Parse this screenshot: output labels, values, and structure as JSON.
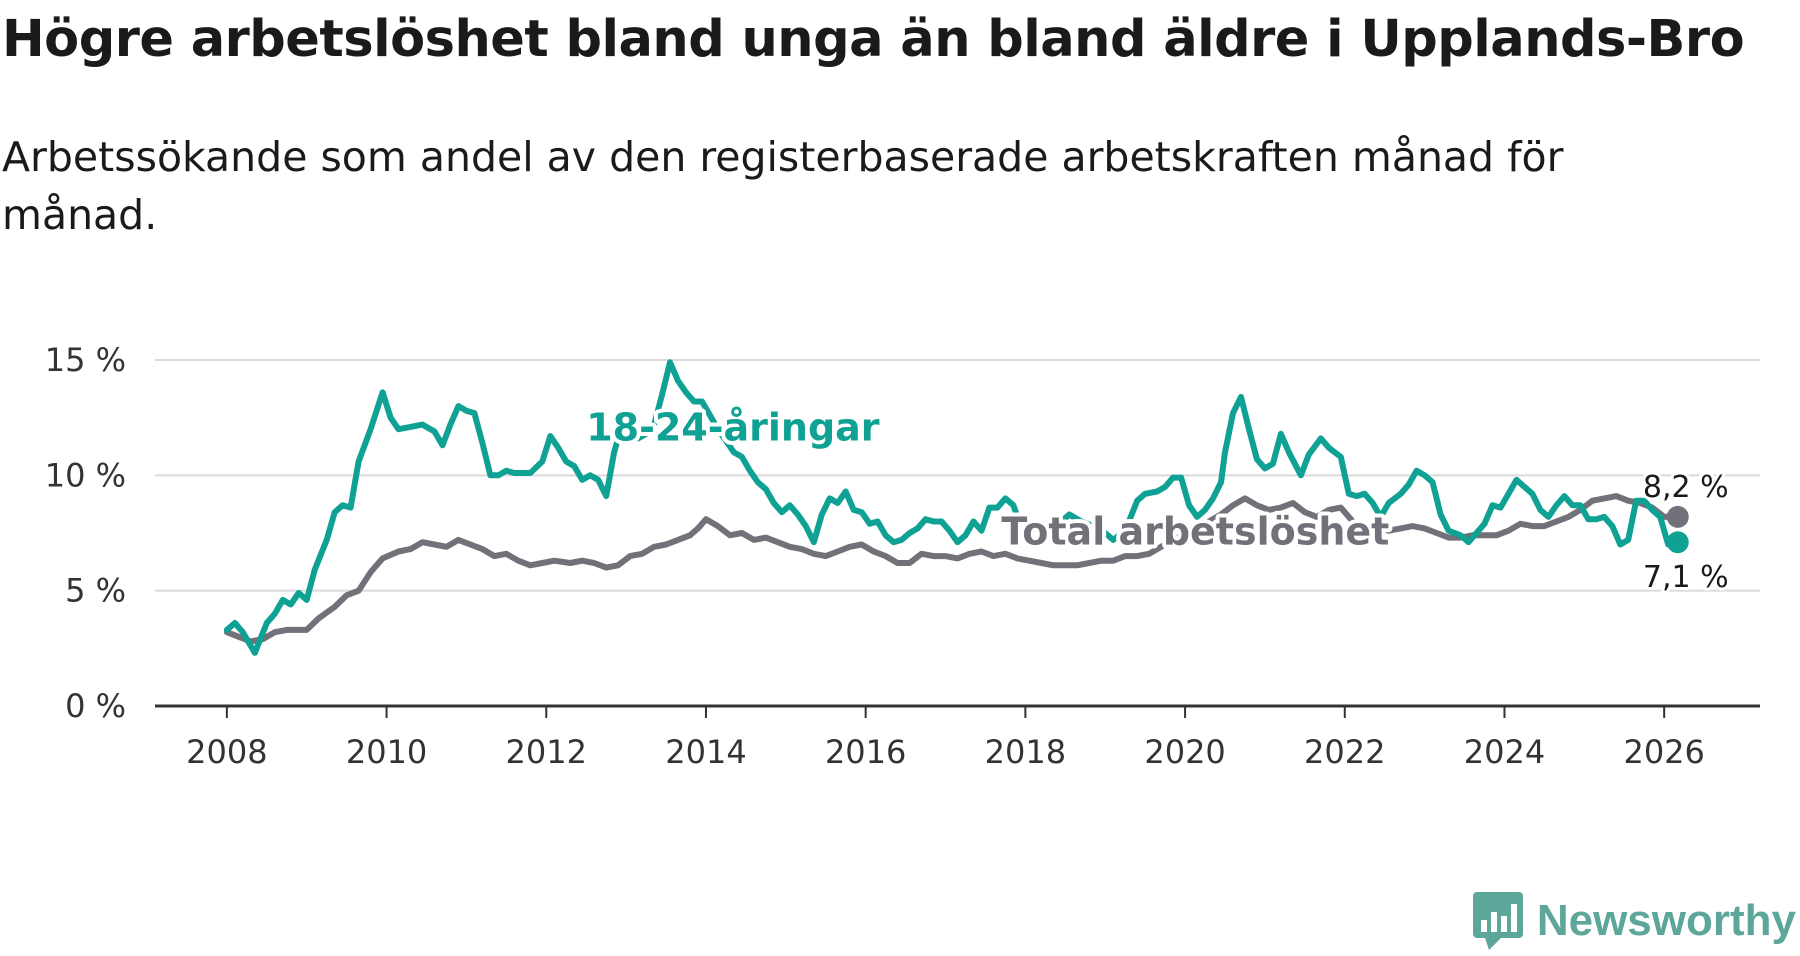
{
  "title": "Högre arbetslöshet bland unga än bland äldre i Upplands-Bro",
  "subtitle": "Arbetssökande som andel av den registerbaserade arbetskraften månad för månad.",
  "brand": "Newsworthy",
  "colors": {
    "youth": "#0fa294",
    "total": "#727078",
    "grid": "#dadada",
    "axis": "#333333"
  },
  "chart_data": {
    "type": "line",
    "title": "Högre arbetslöshet bland unga än bland äldre i Upplands-Bro",
    "subtitle": "Arbetssökande som andel av den registerbaserade arbetskraften månad för månad.",
    "xlabel": "",
    "ylabel": "",
    "xlim": [
      2007.1,
      2027.2
    ],
    "ylim": [
      0,
      15
    ],
    "yticks": [
      0,
      5,
      10,
      15
    ],
    "ytick_labels": [
      "0 %",
      "5 %",
      "10 %",
      "15 %"
    ],
    "xticks": [
      2008,
      2010,
      2012,
      2014,
      2016,
      2018,
      2020,
      2022,
      2024,
      2026
    ],
    "xtick_labels": [
      "2008",
      "2010",
      "2012",
      "2014",
      "2016",
      "2018",
      "2020",
      "2022",
      "2024",
      "2026"
    ],
    "grid": true,
    "series": [
      {
        "name": "18-24-åringar",
        "color": "#0fa294",
        "end_label": "7,1 %",
        "points": [
          [
            2008.0,
            3.3
          ],
          [
            2008.1,
            3.6
          ],
          [
            2008.2,
            3.2
          ],
          [
            2008.35,
            2.3
          ],
          [
            2008.5,
            3.6
          ],
          [
            2008.6,
            4.0
          ],
          [
            2008.7,
            4.6
          ],
          [
            2008.8,
            4.4
          ],
          [
            2008.9,
            4.9
          ],
          [
            2009.0,
            4.6
          ],
          [
            2009.1,
            5.9
          ],
          [
            2009.25,
            7.2
          ],
          [
            2009.35,
            8.4
          ],
          [
            2009.45,
            8.7
          ],
          [
            2009.55,
            8.6
          ],
          [
            2009.65,
            10.6
          ],
          [
            2009.8,
            12.0
          ],
          [
            2009.95,
            13.6
          ],
          [
            2010.05,
            12.5
          ],
          [
            2010.15,
            12.0
          ],
          [
            2010.3,
            12.1
          ],
          [
            2010.45,
            12.2
          ],
          [
            2010.6,
            11.9
          ],
          [
            2010.7,
            11.3
          ],
          [
            2010.8,
            12.2
          ],
          [
            2010.9,
            13.0
          ],
          [
            2011.0,
            12.8
          ],
          [
            2011.1,
            12.7
          ],
          [
            2011.2,
            11.4
          ],
          [
            2011.3,
            10.0
          ],
          [
            2011.4,
            10.0
          ],
          [
            2011.5,
            10.2
          ],
          [
            2011.6,
            10.1
          ],
          [
            2011.7,
            10.1
          ],
          [
            2011.8,
            10.1
          ],
          [
            2011.95,
            10.6
          ],
          [
            2012.05,
            11.7
          ],
          [
            2012.15,
            11.2
          ],
          [
            2012.25,
            10.6
          ],
          [
            2012.35,
            10.4
          ],
          [
            2012.45,
            9.8
          ],
          [
            2012.55,
            10.0
          ],
          [
            2012.65,
            9.8
          ],
          [
            2012.75,
            9.1
          ],
          [
            2012.85,
            11.0
          ],
          [
            2012.95,
            12.2
          ],
          [
            2013.05,
            12.2
          ],
          [
            2013.15,
            11.6
          ],
          [
            2013.25,
            11.8
          ],
          [
            2013.35,
            12.2
          ],
          [
            2013.45,
            13.5
          ],
          [
            2013.55,
            14.9
          ],
          [
            2013.65,
            14.1
          ],
          [
            2013.75,
            13.6
          ],
          [
            2013.85,
            13.2
          ],
          [
            2013.95,
            13.2
          ],
          [
            2014.05,
            12.6
          ],
          [
            2014.15,
            12.0
          ],
          [
            2014.25,
            11.5
          ],
          [
            2014.35,
            11.0
          ],
          [
            2014.45,
            10.8
          ],
          [
            2014.55,
            10.2
          ],
          [
            2014.65,
            9.7
          ],
          [
            2014.75,
            9.4
          ],
          [
            2014.85,
            8.8
          ],
          [
            2014.95,
            8.4
          ],
          [
            2015.05,
            8.7
          ],
          [
            2015.15,
            8.3
          ],
          [
            2015.25,
            7.8
          ],
          [
            2015.35,
            7.1
          ],
          [
            2015.45,
            8.3
          ],
          [
            2015.55,
            9.0
          ],
          [
            2015.65,
            8.8
          ],
          [
            2015.75,
            9.3
          ],
          [
            2015.85,
            8.5
          ],
          [
            2015.95,
            8.4
          ],
          [
            2016.05,
            7.9
          ],
          [
            2016.15,
            8.0
          ],
          [
            2016.25,
            7.4
          ],
          [
            2016.35,
            7.1
          ],
          [
            2016.45,
            7.2
          ],
          [
            2016.55,
            7.5
          ],
          [
            2016.65,
            7.7
          ],
          [
            2016.75,
            8.1
          ],
          [
            2016.85,
            8.0
          ],
          [
            2016.95,
            8.0
          ],
          [
            2017.05,
            7.6
          ],
          [
            2017.15,
            7.1
          ],
          [
            2017.25,
            7.4
          ],
          [
            2017.35,
            8.0
          ],
          [
            2017.45,
            7.6
          ],
          [
            2017.55,
            8.6
          ],
          [
            2017.65,
            8.6
          ],
          [
            2017.75,
            9.0
          ],
          [
            2017.85,
            8.7
          ],
          [
            2017.95,
            7.7
          ],
          [
            2018.1,
            7.8
          ],
          [
            2018.2,
            7.5
          ],
          [
            2018.3,
            7.8
          ],
          [
            2018.45,
            8.0
          ],
          [
            2018.55,
            8.3
          ],
          [
            2018.7,
            8.0
          ],
          [
            2018.85,
            7.8
          ],
          [
            2019.0,
            7.5
          ],
          [
            2019.1,
            7.2
          ],
          [
            2019.25,
            7.6
          ],
          [
            2019.4,
            8.9
          ],
          [
            2019.5,
            9.2
          ],
          [
            2019.65,
            9.3
          ],
          [
            2019.75,
            9.5
          ],
          [
            2019.85,
            9.9
          ],
          [
            2019.95,
            9.9
          ],
          [
            2020.05,
            8.7
          ],
          [
            2020.15,
            8.2
          ],
          [
            2020.25,
            8.5
          ],
          [
            2020.35,
            9.0
          ],
          [
            2020.45,
            9.7
          ],
          [
            2020.5,
            11.0
          ],
          [
            2020.6,
            12.7
          ],
          [
            2020.7,
            13.4
          ],
          [
            2020.8,
            12.0
          ],
          [
            2020.9,
            10.7
          ],
          [
            2021.0,
            10.3
          ],
          [
            2021.1,
            10.5
          ],
          [
            2021.2,
            11.8
          ],
          [
            2021.3,
            11.0
          ],
          [
            2021.45,
            10.0
          ],
          [
            2021.55,
            10.9
          ],
          [
            2021.7,
            11.6
          ],
          [
            2021.8,
            11.2
          ],
          [
            2021.95,
            10.8
          ],
          [
            2022.05,
            9.2
          ],
          [
            2022.15,
            9.1
          ],
          [
            2022.25,
            9.2
          ],
          [
            2022.35,
            8.8
          ],
          [
            2022.45,
            8.2
          ],
          [
            2022.55,
            8.8
          ],
          [
            2022.7,
            9.2
          ],
          [
            2022.8,
            9.6
          ],
          [
            2022.9,
            10.2
          ],
          [
            2023.0,
            10.0
          ],
          [
            2023.1,
            9.7
          ],
          [
            2023.2,
            8.3
          ],
          [
            2023.3,
            7.6
          ],
          [
            2023.45,
            7.4
          ],
          [
            2023.55,
            7.1
          ],
          [
            2023.65,
            7.5
          ],
          [
            2023.75,
            7.9
          ],
          [
            2023.85,
            8.7
          ],
          [
            2023.95,
            8.6
          ],
          [
            2024.05,
            9.2
          ],
          [
            2024.15,
            9.8
          ],
          [
            2024.25,
            9.5
          ],
          [
            2024.35,
            9.2
          ],
          [
            2024.45,
            8.5
          ],
          [
            2024.55,
            8.2
          ],
          [
            2024.65,
            8.7
          ],
          [
            2024.75,
            9.1
          ],
          [
            2024.85,
            8.7
          ],
          [
            2024.95,
            8.7
          ],
          [
            2025.05,
            8.1
          ],
          [
            2025.15,
            8.1
          ],
          [
            2025.25,
            8.2
          ],
          [
            2025.35,
            7.8
          ],
          [
            2025.45,
            7.0
          ],
          [
            2025.55,
            7.2
          ],
          [
            2025.65,
            8.9
          ],
          [
            2025.75,
            8.9
          ],
          [
            2025.85,
            8.5
          ],
          [
            2025.95,
            8.2
          ],
          [
            2026.05,
            7.0
          ],
          [
            2026.17,
            7.1
          ]
        ]
      },
      {
        "name": "Total arbetslöshet",
        "color": "#727078",
        "end_label": "8,2 %",
        "points": [
          [
            2008.0,
            3.2
          ],
          [
            2008.15,
            3.0
          ],
          [
            2008.3,
            2.8
          ],
          [
            2008.45,
            2.9
          ],
          [
            2008.6,
            3.2
          ],
          [
            2008.75,
            3.3
          ],
          [
            2009.0,
            3.3
          ],
          [
            2009.15,
            3.8
          ],
          [
            2009.35,
            4.3
          ],
          [
            2009.5,
            4.8
          ],
          [
            2009.65,
            5.0
          ],
          [
            2009.8,
            5.8
          ],
          [
            2009.95,
            6.4
          ],
          [
            2010.15,
            6.7
          ],
          [
            2010.3,
            6.8
          ],
          [
            2010.45,
            7.1
          ],
          [
            2010.6,
            7.0
          ],
          [
            2010.75,
            6.9
          ],
          [
            2010.9,
            7.2
          ],
          [
            2011.05,
            7.0
          ],
          [
            2011.2,
            6.8
          ],
          [
            2011.35,
            6.5
          ],
          [
            2011.5,
            6.6
          ],
          [
            2011.65,
            6.3
          ],
          [
            2011.8,
            6.1
          ],
          [
            2011.95,
            6.2
          ],
          [
            2012.1,
            6.3
          ],
          [
            2012.3,
            6.2
          ],
          [
            2012.45,
            6.3
          ],
          [
            2012.6,
            6.2
          ],
          [
            2012.75,
            6.0
          ],
          [
            2012.9,
            6.1
          ],
          [
            2013.05,
            6.5
          ],
          [
            2013.2,
            6.6
          ],
          [
            2013.35,
            6.9
          ],
          [
            2013.5,
            7.0
          ],
          [
            2013.65,
            7.2
          ],
          [
            2013.8,
            7.4
          ],
          [
            2013.9,
            7.7
          ],
          [
            2014.0,
            8.1
          ],
          [
            2014.15,
            7.8
          ],
          [
            2014.3,
            7.4
          ],
          [
            2014.45,
            7.5
          ],
          [
            2014.6,
            7.2
          ],
          [
            2014.75,
            7.3
          ],
          [
            2014.9,
            7.1
          ],
          [
            2015.05,
            6.9
          ],
          [
            2015.2,
            6.8
          ],
          [
            2015.35,
            6.6
          ],
          [
            2015.5,
            6.5
          ],
          [
            2015.65,
            6.7
          ],
          [
            2015.8,
            6.9
          ],
          [
            2015.95,
            7.0
          ],
          [
            2016.1,
            6.7
          ],
          [
            2016.25,
            6.5
          ],
          [
            2016.4,
            6.2
          ],
          [
            2016.55,
            6.2
          ],
          [
            2016.7,
            6.6
          ],
          [
            2016.85,
            6.5
          ],
          [
            2017.0,
            6.5
          ],
          [
            2017.15,
            6.4
          ],
          [
            2017.3,
            6.6
          ],
          [
            2017.45,
            6.7
          ],
          [
            2017.6,
            6.5
          ],
          [
            2017.75,
            6.6
          ],
          [
            2017.9,
            6.4
          ],
          [
            2018.05,
            6.3
          ],
          [
            2018.2,
            6.2
          ],
          [
            2018.35,
            6.1
          ],
          [
            2018.5,
            6.1
          ],
          [
            2018.65,
            6.1
          ],
          [
            2018.8,
            6.2
          ],
          [
            2018.95,
            6.3
          ],
          [
            2019.1,
            6.3
          ],
          [
            2019.25,
            6.5
          ],
          [
            2019.4,
            6.5
          ],
          [
            2019.55,
            6.6
          ],
          [
            2019.7,
            6.9
          ],
          [
            2019.85,
            7.2
          ],
          [
            2020.0,
            7.5
          ],
          [
            2020.15,
            7.7
          ],
          [
            2020.3,
            8.0
          ],
          [
            2020.45,
            8.3
          ],
          [
            2020.6,
            8.7
          ],
          [
            2020.75,
            9.0
          ],
          [
            2020.9,
            8.7
          ],
          [
            2021.05,
            8.5
          ],
          [
            2021.2,
            8.6
          ],
          [
            2021.35,
            8.8
          ],
          [
            2021.5,
            8.4
          ],
          [
            2021.65,
            8.2
          ],
          [
            2021.8,
            8.5
          ],
          [
            2021.95,
            8.6
          ],
          [
            2022.1,
            8.0
          ],
          [
            2022.25,
            7.8
          ],
          [
            2022.4,
            7.7
          ],
          [
            2022.55,
            7.6
          ],
          [
            2022.7,
            7.7
          ],
          [
            2022.85,
            7.8
          ],
          [
            2023.0,
            7.7
          ],
          [
            2023.15,
            7.5
          ],
          [
            2023.3,
            7.3
          ],
          [
            2023.45,
            7.3
          ],
          [
            2023.6,
            7.4
          ],
          [
            2023.75,
            7.4
          ],
          [
            2023.9,
            7.4
          ],
          [
            2024.05,
            7.6
          ],
          [
            2024.2,
            7.9
          ],
          [
            2024.35,
            7.8
          ],
          [
            2024.5,
            7.8
          ],
          [
            2024.65,
            8.0
          ],
          [
            2024.8,
            8.2
          ],
          [
            2024.95,
            8.5
          ],
          [
            2025.1,
            8.9
          ],
          [
            2025.25,
            9.0
          ],
          [
            2025.4,
            9.1
          ],
          [
            2025.55,
            8.9
          ],
          [
            2025.7,
            8.8
          ],
          [
            2025.85,
            8.6
          ],
          [
            2026.0,
            8.2
          ],
          [
            2026.17,
            8.2
          ]
        ]
      }
    ],
    "annotations": [
      {
        "text": "18-24-åringar",
        "series": "18-24-åringar",
        "x": 2012.5,
        "y": 11.5
      },
      {
        "text": "Total arbetslöshet",
        "series": "Total arbetslöshet",
        "x": 2017.7,
        "y": 7.0
      }
    ]
  }
}
